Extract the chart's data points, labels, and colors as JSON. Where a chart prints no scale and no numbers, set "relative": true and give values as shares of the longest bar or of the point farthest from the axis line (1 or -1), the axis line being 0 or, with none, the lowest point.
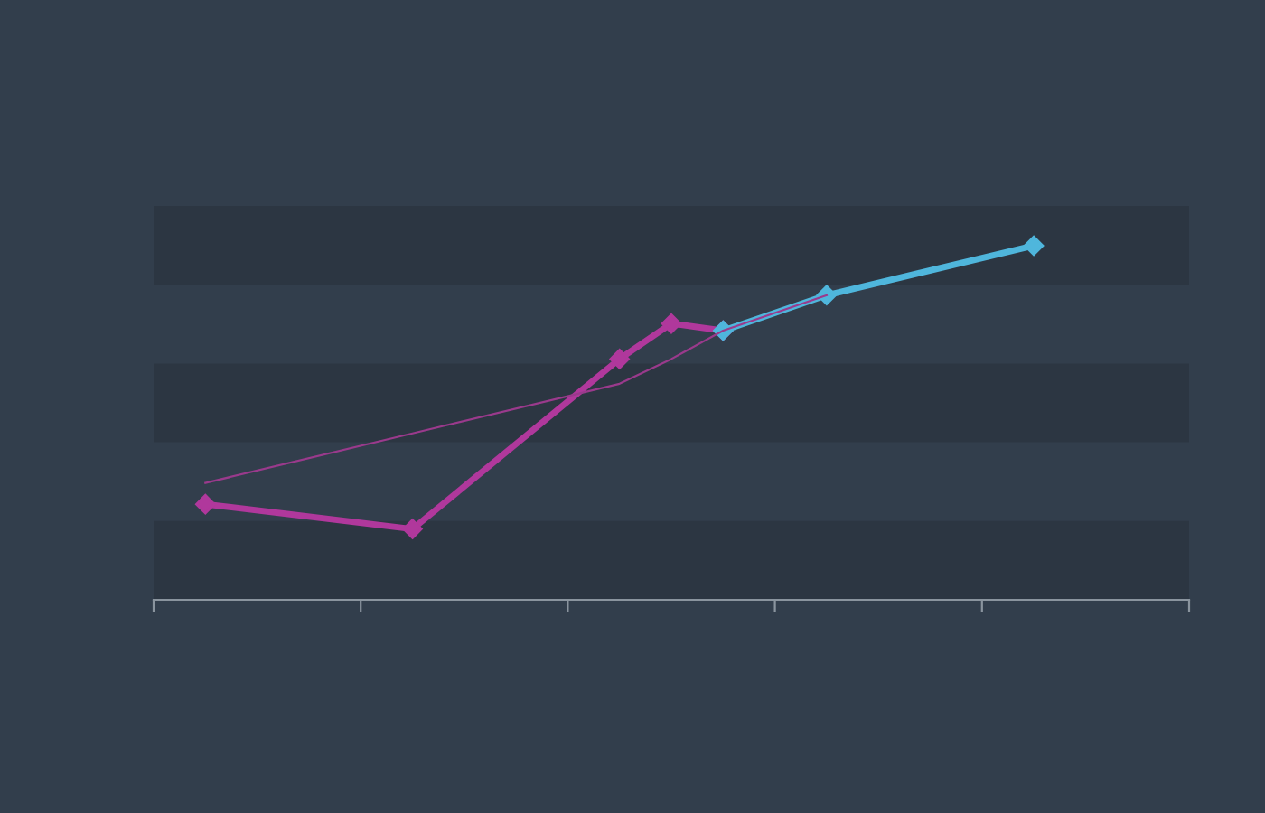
{
  "chart_data": {
    "type": "line",
    "relative": true,
    "marker": "diamond",
    "categories": [
      null,
      null,
      null,
      null,
      null,
      null,
      null,
      null,
      null,
      null,
      null,
      null,
      null,
      null,
      null,
      null,
      null,
      null,
      null,
      null,
      null
    ],
    "series": [
      {
        "color": "#b0389c",
        "values": [
          null,
          0.27,
          null,
          null,
          null,
          0.2,
          null,
          null,
          null,
          0.68,
          0.78,
          0.76,
          null,
          null,
          null,
          null,
          null,
          null,
          null,
          null,
          null
        ]
      },
      {
        "color": "#4fb6dc",
        "values": [
          null,
          null,
          null,
          null,
          null,
          null,
          null,
          null,
          null,
          null,
          null,
          0.76,
          null,
          0.86,
          null,
          null,
          null,
          1.0,
          null,
          null,
          null
        ]
      },
      {
        "color": "#9a3a8c",
        "marker": "none",
        "values": [
          null,
          0.33,
          null,
          null,
          null,
          0.47,
          null,
          null,
          null,
          0.61,
          0.68,
          0.76,
          null,
          0.86,
          null,
          null,
          null,
          null,
          null,
          null,
          null
        ]
      }
    ]
  }
}
